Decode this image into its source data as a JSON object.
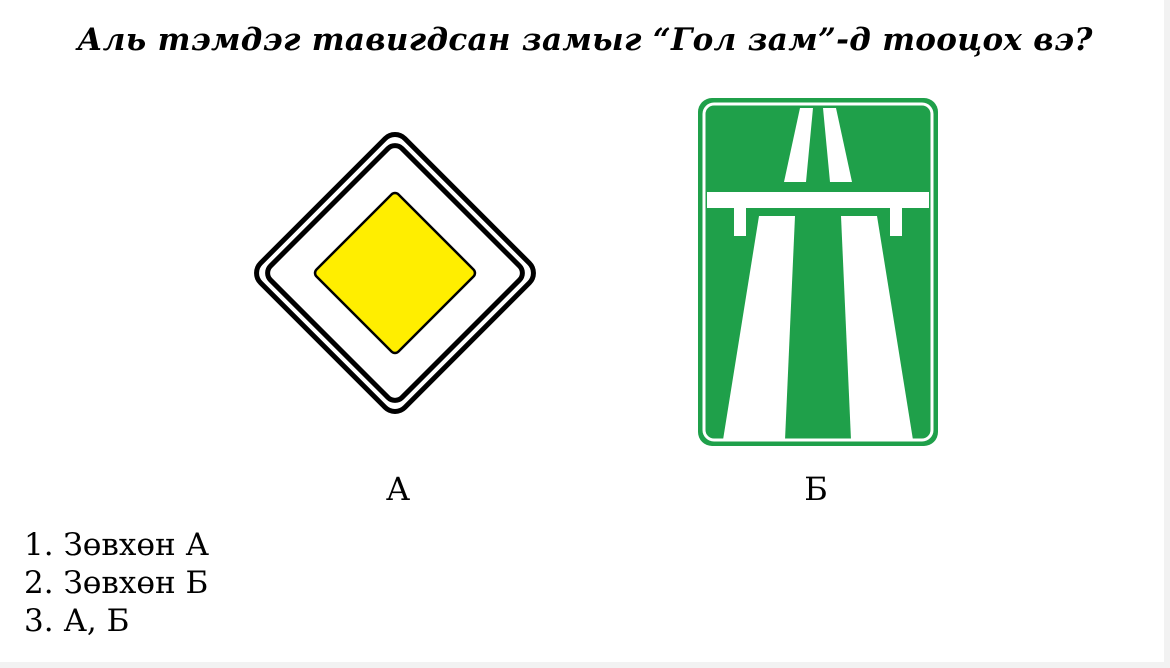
{
  "question": "Аль тэмдэг тавигдсан замыг “Гол зам”-д тооцох вэ?",
  "signs": [
    {
      "label": "А",
      "icon": "main-road-sign-icon",
      "colors": {
        "fill": "#ffee00",
        "border": "#000000",
        "background": "#ffffff"
      }
    },
    {
      "label": "Б",
      "icon": "motorway-sign-icon",
      "colors": {
        "fill": "#1fa04a",
        "border": "#ffffff"
      }
    }
  ],
  "answers": [
    {
      "number": "1.",
      "text": "Зөвхөн А"
    },
    {
      "number": "2.",
      "text": "Зөвхөн Б"
    },
    {
      "number": "3.",
      "text": "А, Б"
    }
  ]
}
